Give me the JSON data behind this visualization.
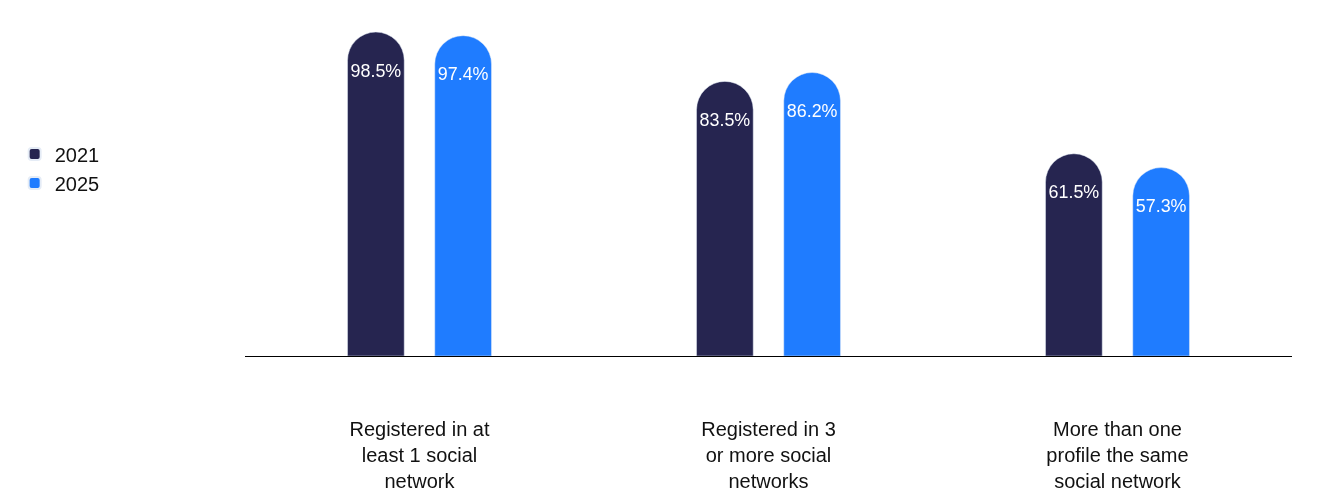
{
  "chart_data": {
    "type": "bar",
    "categories": [
      "Registered in at least 1 social network",
      "Registered in 3 or more social networks",
      "More than one profile the same social network"
    ],
    "series": [
      {
        "name": "2021",
        "color": "#262550",
        "values": [
          98.5,
          83.5,
          61.5
        ],
        "value_labels": [
          "98.5%",
          "83.5%",
          "61.5%"
        ]
      },
      {
        "name": "2025",
        "color": "#1f7cff",
        "values": [
          97.4,
          86.2,
          57.3
        ],
        "value_labels": [
          "97.4%",
          "86.2%",
          "57.3%"
        ]
      }
    ],
    "legend": "left",
    "tick_labels": "x"
  }
}
